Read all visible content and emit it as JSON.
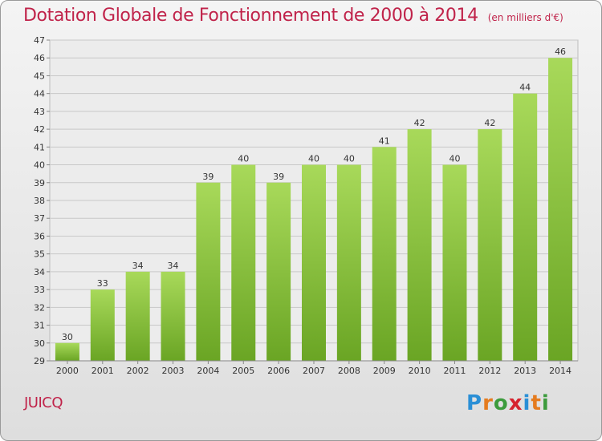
{
  "title": "Dotation Globale de Fonctionnement de 2000 à 2014",
  "unit_note": "(en milliers d'€)",
  "commune": "JUICQ",
  "logo": {
    "text": "Proxiti",
    "letters": [
      {
        "ch": "P",
        "color": "#2a8fd6"
      },
      {
        "ch": "r",
        "color": "#e57b1e"
      },
      {
        "ch": "o",
        "color": "#3c9b3c"
      },
      {
        "ch": "x",
        "color": "#d6232e"
      },
      {
        "ch": "i",
        "color": "#2a8fd6"
      },
      {
        "ch": "t",
        "color": "#e57b1e"
      },
      {
        "ch": "i",
        "color": "#3c9b3c"
      }
    ]
  },
  "colors": {
    "bar_light": "#a8d95a",
    "bar_dark": "#6aa524",
    "grid": "#c8c8c8",
    "axis_text": "#333333",
    "title": "#c0234a"
  },
  "chart_data": {
    "type": "bar",
    "categories": [
      "2000",
      "2001",
      "2002",
      "2003",
      "2004",
      "2005",
      "2006",
      "2007",
      "2008",
      "2009",
      "2010",
      "2011",
      "2012",
      "2013",
      "2014"
    ],
    "values": [
      30,
      33,
      34,
      34,
      39,
      40,
      39,
      40,
      40,
      41,
      42,
      40,
      42,
      44,
      46
    ],
    "ylim": [
      29,
      47
    ],
    "yticks": [
      29,
      30,
      31,
      32,
      33,
      34,
      35,
      36,
      37,
      38,
      39,
      40,
      41,
      42,
      43,
      44,
      45,
      46,
      47
    ],
    "grid": true,
    "data_labels": true
  }
}
